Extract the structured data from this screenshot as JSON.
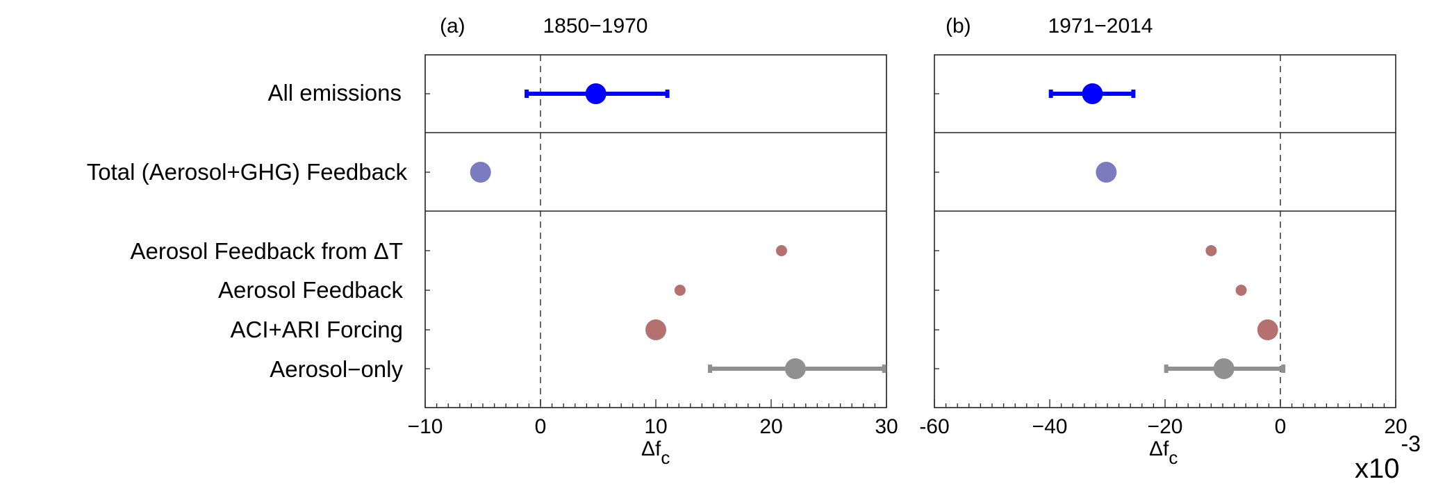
{
  "chart_data": [
    {
      "type": "scatter",
      "panel_label": "(a)",
      "title": "1850−1970",
      "xlabel": "Δf",
      "xlabel_sub": "c",
      "xlim": [
        -10,
        30
      ],
      "xticks": [
        "−10",
        "0",
        "10",
        "20",
        "30"
      ],
      "xtick_values": [
        -10,
        0,
        10,
        20,
        30
      ],
      "categories": [
        "All emissions",
        "Total (Aerosol+GHG) Feedback",
        "Aerosol Feedback from ΔT",
        "Aerosol Feedback",
        "ACI+ARI Forcing",
        "Aerosol−only"
      ],
      "points": [
        {
          "category": "All emissions",
          "x": 4.8,
          "err_low": -1.2,
          "err_high": 11.0,
          "color": "#0000ff",
          "size": "large"
        },
        {
          "category": "Total (Aerosol+GHG) Feedback",
          "x": -5.2,
          "color": "#7b7bbf",
          "size": "large"
        },
        {
          "category": "Aerosol Feedback from ΔT",
          "x": 20.9,
          "color": "#b57170",
          "size": "small"
        },
        {
          "category": "Aerosol Feedback",
          "x": 12.1,
          "color": "#b57170",
          "size": "small"
        },
        {
          "category": "ACI+ARI Forcing",
          "x": 10.0,
          "color": "#b57170",
          "size": "large"
        },
        {
          "category": "Aerosol−only",
          "x": 22.1,
          "err_low": 14.7,
          "err_high": 29.8,
          "color": "#909090",
          "size": "large"
        }
      ]
    },
    {
      "type": "scatter",
      "panel_label": "(b)",
      "title": "1971−2014",
      "xlabel": "Δf",
      "xlabel_sub": "c",
      "xlim": [
        -60,
        20
      ],
      "xticks": [
        "-60",
        "−40",
        "−20",
        "0",
        "20"
      ],
      "xtick_values": [
        -60,
        -40,
        -20,
        0,
        20
      ],
      "axis_multiplier": "x10",
      "axis_multiplier_exp": "-3",
      "categories": [
        "All emissions",
        "Total (Aerosol+GHG) Feedback",
        "Aerosol Feedback from ΔT",
        "Aerosol Feedback",
        "ACI+ARI Forcing",
        "Aerosol−only"
      ],
      "points": [
        {
          "category": "All emissions",
          "x": -32.6,
          "err_low": -39.8,
          "err_high": -25.5,
          "color": "#0000ff",
          "size": "large"
        },
        {
          "category": "Total (Aerosol+GHG) Feedback",
          "x": -30.2,
          "color": "#7b7bbf",
          "size": "large"
        },
        {
          "category": "Aerosol Feedback from ΔT",
          "x": -12.0,
          "color": "#b57170",
          "size": "small"
        },
        {
          "category": "Aerosol Feedback",
          "x": -6.8,
          "color": "#b57170",
          "size": "small"
        },
        {
          "category": "ACI+ARI Forcing",
          "x": -2.2,
          "color": "#b57170",
          "size": "large"
        },
        {
          "category": "Aerosol−only",
          "x": -9.8,
          "err_low": -19.8,
          "err_high": 0.5,
          "color": "#909090",
          "size": "large"
        }
      ]
    }
  ]
}
